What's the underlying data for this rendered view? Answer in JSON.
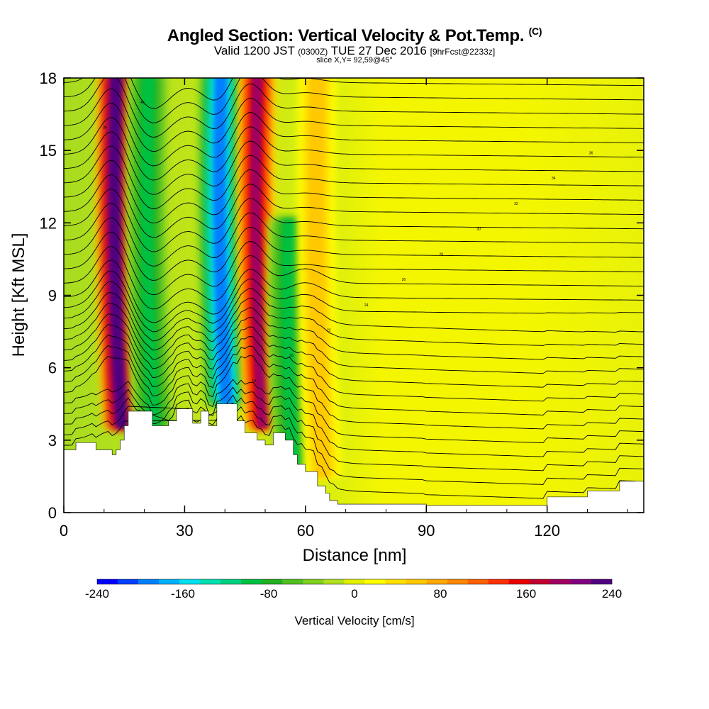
{
  "header": {
    "title": "Angled Section: Vertical Velocity & Pot.Temp.",
    "title_units": "(C)",
    "valid_prefix": "Valid 1200 JST",
    "valid_utc": "(0300Z)",
    "valid_date": "TUE 27 Dec 2016",
    "forecast": "[9hrFcst@2233z]",
    "slice": "slice X,Y= 92,59@45°"
  },
  "chart_data": {
    "type": "heatmap",
    "title": "Angled Section: Vertical Velocity & Pot.Temp.",
    "xlabel": "Distance [nm]",
    "ylabel": "Height [Kft MSL]",
    "xlim": [
      0,
      144
    ],
    "ylim": [
      0,
      18
    ],
    "x_ticks": [
      "0",
      "30",
      "60",
      "90",
      "120"
    ],
    "y_ticks": [
      "0",
      "3",
      "6",
      "9",
      "12",
      "15",
      "18"
    ],
    "colorbar": {
      "label": "Vertical Velocity [cm/s]",
      "range": [
        -240,
        240
      ],
      "tick_labels": [
        "-240",
        "-160",
        "-80",
        "0",
        "80",
        "160",
        "240"
      ],
      "colors": [
        "#0000ff",
        "#0040ff",
        "#0080ff",
        "#00b0ff",
        "#00e0f0",
        "#00e0b0",
        "#00d080",
        "#00c040",
        "#20b020",
        "#50c020",
        "#80d020",
        "#b0e020",
        "#e0f000",
        "#ffff00",
        "#ffe000",
        "#ffc800",
        "#ffa800",
        "#ff8800",
        "#ff6000",
        "#ff3000",
        "#e80000",
        "#c00030",
        "#a00060",
        "#800080",
        "#500080"
      ]
    },
    "vertical_velocity_features": [
      {
        "type": "updraft",
        "x": 13,
        "y_range": [
          3.5,
          18
        ],
        "peak": 240
      },
      {
        "type": "downdraft",
        "x": 21,
        "y_range": [
          3.5,
          18
        ],
        "peak": -100
      },
      {
        "type": "downdraft",
        "x": 39,
        "y_range": [
          4.5,
          18
        ],
        "peak": -200
      },
      {
        "type": "updraft",
        "x": 48,
        "y_range": [
          3.5,
          18
        ],
        "peak": 200
      },
      {
        "type": "downdraft",
        "x": 56,
        "y_range": [
          2,
          12
        ],
        "peak": -100
      },
      {
        "type": "updraft",
        "x": 63,
        "y_range": [
          1.5,
          18
        ],
        "peak": 60
      }
    ],
    "terrain_profile": {
      "x": [
        0,
        3,
        5,
        8,
        10,
        12,
        13,
        14,
        15,
        16,
        18,
        22,
        26,
        28,
        30,
        32,
        34,
        36,
        38,
        41,
        43,
        45,
        48,
        50,
        52,
        55,
        57,
        58,
        60,
        62,
        63,
        65,
        66,
        68,
        72,
        80,
        90,
        100,
        113,
        120,
        130,
        138,
        144
      ],
      "y": [
        2.6,
        2.9,
        2.9,
        2.6,
        2.6,
        2.4,
        2.6,
        3.0,
        3.6,
        4.2,
        4.2,
        3.6,
        3.8,
        4.3,
        4.3,
        3.7,
        4.2,
        3.6,
        4.5,
        4.5,
        3.8,
        3.3,
        3.0,
        2.8,
        3.3,
        3.0,
        2.4,
        2.0,
        1.7,
        1.7,
        1.1,
        0.8,
        0.5,
        0.35,
        0.35,
        0.35,
        0.3,
        0.3,
        0.3,
        0.65,
        0.9,
        1.3,
        1.3
      ]
    },
    "theta_contours": {
      "levels": 30,
      "labels": [
        "10",
        "12",
        "14",
        "16",
        "18",
        "20",
        "22",
        "24",
        "26",
        "28",
        "30",
        "32",
        "34",
        "36",
        "38",
        "40"
      ]
    }
  }
}
